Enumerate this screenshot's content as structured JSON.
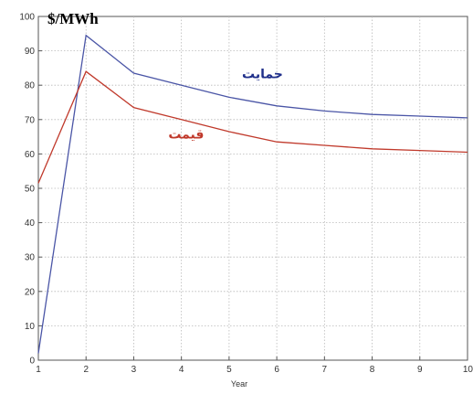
{
  "chart_data": {
    "type": "line",
    "xlabel": "Year",
    "ylabel": "$/MWh",
    "x": [
      1,
      2,
      3,
      4,
      5,
      6,
      7,
      8,
      9,
      10
    ],
    "xlim": [
      1,
      10
    ],
    "ylim": [
      0,
      100
    ],
    "xticks": [
      "1",
      "2",
      "3",
      "4",
      "5",
      "6",
      "7",
      "8",
      "9",
      "10"
    ],
    "yticks": [
      "0",
      "10",
      "20",
      "30",
      "40",
      "50",
      "60",
      "70",
      "80",
      "90",
      "100"
    ],
    "grid": true,
    "series": [
      {
        "name": "حمایت",
        "color": "#4a55a6",
        "values": [
          2,
          94.5,
          83.5,
          80,
          76.5,
          74,
          72.5,
          71.5,
          71,
          70.5
        ]
      },
      {
        "name": "قیمت",
        "color": "#c0392b",
        "values": [
          51.5,
          84,
          73.5,
          70,
          66.5,
          63.5,
          62.5,
          61.5,
          61,
          60.5
        ]
      }
    ],
    "annotations": [
      {
        "text": "حمایت",
        "color": "#1f2f8a",
        "x": 5.7,
        "y": 82
      },
      {
        "text": "قیمت",
        "color": "#c0392b",
        "x": 4.1,
        "y": 64.5
      }
    ]
  }
}
